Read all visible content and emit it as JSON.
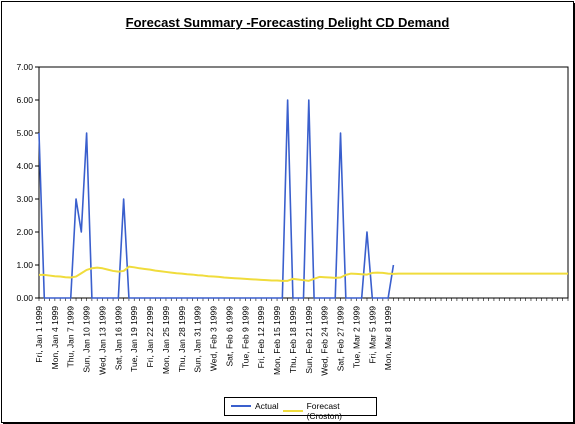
{
  "chart_data": {
    "type": "line",
    "title": "Forecast Summary -Forecasting Delight CD Demand",
    "xlabel": "",
    "ylabel": "",
    "ylim": [
      0,
      7
    ],
    "yticks": [
      "0.00",
      "1.00",
      "2.00",
      "3.00",
      "4.00",
      "5.00",
      "6.00",
      "7.00"
    ],
    "x_tick_labels": [
      "Fri, Jan 1 1999",
      "Mon, Jan 4 1999",
      "Thu, Jan 7 1999",
      "Sun, Jan 10 1999",
      "Wed, Jan 13 1999",
      "Sat, Jan 16 1999",
      "Tue, Jan 19 1999",
      "Fri, Jan 22 1999",
      "Mon, Jan 25 1999",
      "Thu, Jan 28 1999",
      "Sun, Jan 31 1999",
      "Wed, Feb 3 1999",
      "Sat, Feb 6 1999",
      "Tue, Feb 9 1999",
      "Fri, Feb 12 1999",
      "Mon, Feb 15 1999",
      "Thu, Feb 18 1999",
      "Sun, Feb 21 1999",
      "Wed, Feb 24 1999",
      "Sat, Feb 27 1999",
      "Tue, Mar 2 1999",
      "Fri, Mar 5 1999",
      "Mon, Mar 8 1999"
    ],
    "x_start": "1999-01-01",
    "n_points": 68,
    "grid": false,
    "legend_position": "bottom",
    "colors": {
      "actual": "#3a5fcd",
      "forecast": "#f0dc3c"
    },
    "series": [
      {
        "name": "Actual",
        "values": [
          5,
          0,
          0,
          0,
          0,
          0,
          0,
          3,
          2,
          5,
          0,
          0,
          0,
          0,
          0,
          0,
          3,
          0,
          0,
          0,
          0,
          0,
          0,
          0,
          0,
          0,
          0,
          0,
          0,
          0,
          0,
          0,
          0,
          0,
          0,
          0,
          0,
          0,
          0,
          0,
          0,
          0,
          0,
          0,
          0,
          0,
          0,
          6,
          0,
          0,
          0,
          6,
          0,
          0,
          0,
          0,
          0,
          5,
          0,
          0,
          0,
          0,
          2,
          0,
          0,
          0,
          0,
          1
        ]
      },
      {
        "name": "Forecast (Croston)",
        "values": [
          0.7,
          0.7,
          0.68,
          0.66,
          0.65,
          0.63,
          0.62,
          0.65,
          0.75,
          0.85,
          0.9,
          0.92,
          0.9,
          0.86,
          0.82,
          0.8,
          0.82,
          0.95,
          0.93,
          0.9,
          0.88,
          0.86,
          0.83,
          0.81,
          0.79,
          0.77,
          0.75,
          0.74,
          0.72,
          0.71,
          0.69,
          0.68,
          0.66,
          0.65,
          0.64,
          0.62,
          0.61,
          0.6,
          0.59,
          0.58,
          0.57,
          0.56,
          0.55,
          0.54,
          0.53,
          0.53,
          0.52,
          0.52,
          0.58,
          0.56,
          0.54,
          0.52,
          0.58,
          0.64,
          0.63,
          0.62,
          0.61,
          0.62,
          0.7,
          0.74,
          0.73,
          0.72,
          0.71,
          0.76,
          0.77,
          0.76,
          0.74,
          0.73,
          0.74,
          0.74,
          0.74,
          0.74,
          0.74,
          0.74,
          0.74,
          0.74,
          0.74,
          0.74,
          0.74,
          0.74,
          0.74,
          0.74,
          0.74,
          0.74,
          0.74,
          0.74,
          0.74,
          0.74,
          0.74,
          0.74,
          0.74,
          0.74,
          0.74,
          0.74,
          0.74,
          0.74,
          0.74,
          0.74,
          0.74,
          0.74,
          0.74
        ]
      }
    ]
  }
}
